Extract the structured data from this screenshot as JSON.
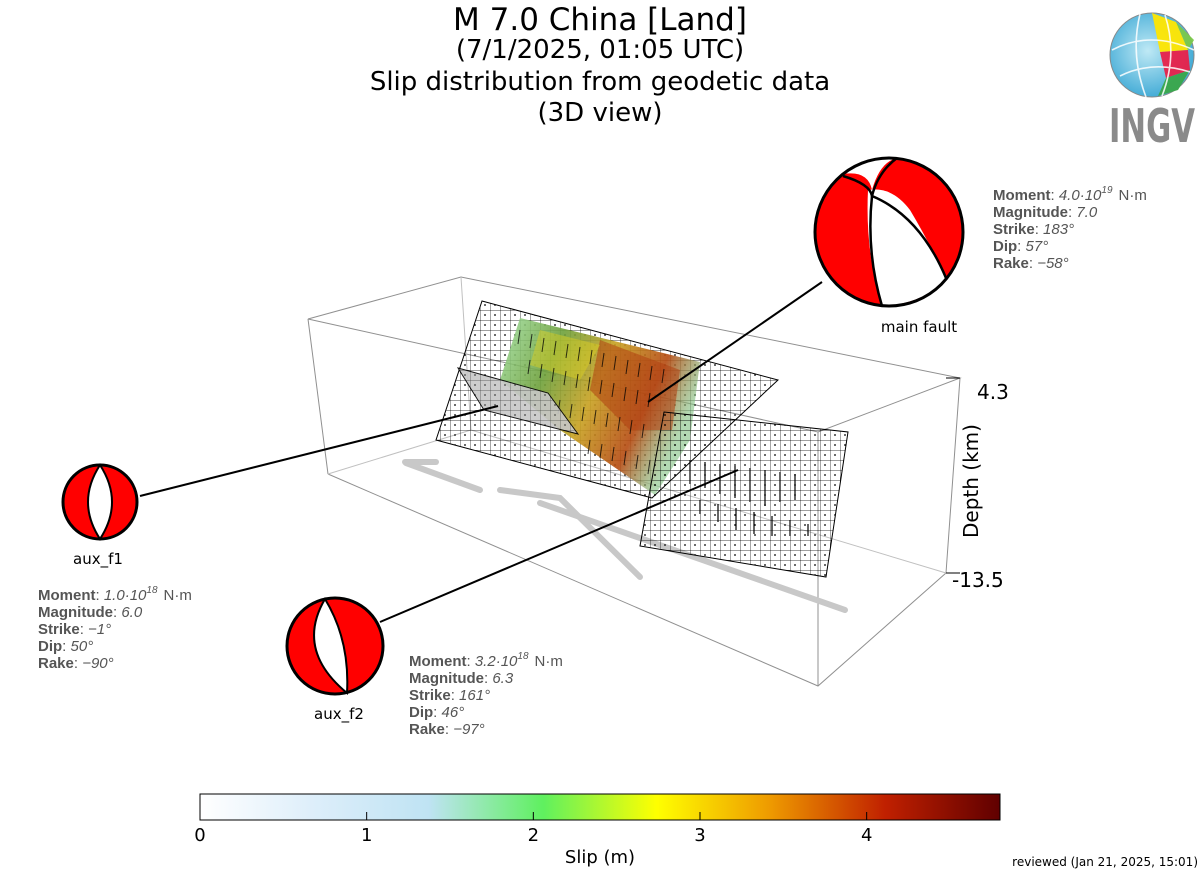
{
  "title": {
    "line1": "M 7.0 China [Land]",
    "line2": "(7/1/2025, 01:05 UTC)",
    "line3": "Slip distribution from geodetic data",
    "line4": "(3D view)"
  },
  "logo": {
    "text": "INGV"
  },
  "footer": {
    "reviewed": "reviewed (Jan 21, 2025, 15:01)"
  },
  "axis": {
    "depth_label": "Depth (km)",
    "depth_top": "4.3",
    "depth_bottom": "-13.5"
  },
  "colorbar": {
    "label": "Slip (m)",
    "ticks": [
      "0",
      "1",
      "2",
      "3",
      "4"
    ],
    "range": [
      0,
      4.8
    ],
    "stops": [
      "#ffffff",
      "#ddeefa",
      "#bfe3f3",
      "#5ff05f",
      "#ffff00",
      "#ee9900",
      "#c02000",
      "#600000"
    ]
  },
  "mechanisms": {
    "main": {
      "name": "main fault",
      "fill": "#ff0000",
      "moment_label": "Moment",
      "moment_value": "4.0·10",
      "moment_exp": "19",
      "moment_unit": "N·m",
      "magnitude_label": "Magnitude",
      "magnitude_value": "7.0",
      "strike_label": "Strike",
      "strike_value": "183°",
      "dip_label": "Dip",
      "dip_value": "57°",
      "rake_label": "Rake",
      "rake_value": "−58°"
    },
    "aux_f1": {
      "name": "aux_f1",
      "fill": "#ff0000",
      "moment_label": "Moment",
      "moment_value": "1.0·10",
      "moment_exp": "18",
      "moment_unit": "N·m",
      "magnitude_label": "Magnitude",
      "magnitude_value": "6.0",
      "strike_label": "Strike",
      "strike_value": "−1°",
      "dip_label": "Dip",
      "dip_value": "50°",
      "rake_label": "Rake",
      "rake_value": "−90°"
    },
    "aux_f2": {
      "name": "aux_f2",
      "fill": "#ff0000",
      "moment_label": "Moment",
      "moment_value": "3.2·10",
      "moment_exp": "18",
      "moment_unit": "N·m",
      "magnitude_label": "Magnitude",
      "magnitude_value": "6.3",
      "strike_label": "Strike",
      "strike_value": "161°",
      "dip_label": "Dip",
      "dip_value": "46°",
      "rake_label": "Rake",
      "rake_value": "−97°"
    }
  },
  "chart_data": {
    "type": "other",
    "title": "M 7.0 China [Land]",
    "subtitle": "Slip distribution from geodetic data (3D view)",
    "zlabel": "Depth (km)",
    "zlim": [
      -13.5,
      4.3
    ],
    "colorbar_label": "Slip (m)",
    "colorbar_range": [
      0,
      4.8
    ],
    "colorbar_ticks": [
      0,
      1,
      2,
      3,
      4
    ],
    "peak_slip_approx_m": 4.5,
    "faults": [
      {
        "name": "main fault",
        "moment_Nm": 4e+19,
        "magnitude": 7.0,
        "strike": 183,
        "dip": 57,
        "rake": -58
      },
      {
        "name": "aux_f1",
        "moment_Nm": 1e+18,
        "magnitude": 6.0,
        "strike": -1,
        "dip": 50,
        "rake": -90
      },
      {
        "name": "aux_f2",
        "moment_Nm": 3.2e+18,
        "magnitude": 6.3,
        "strike": 161,
        "dip": 46,
        "rake": -97
      }
    ]
  }
}
